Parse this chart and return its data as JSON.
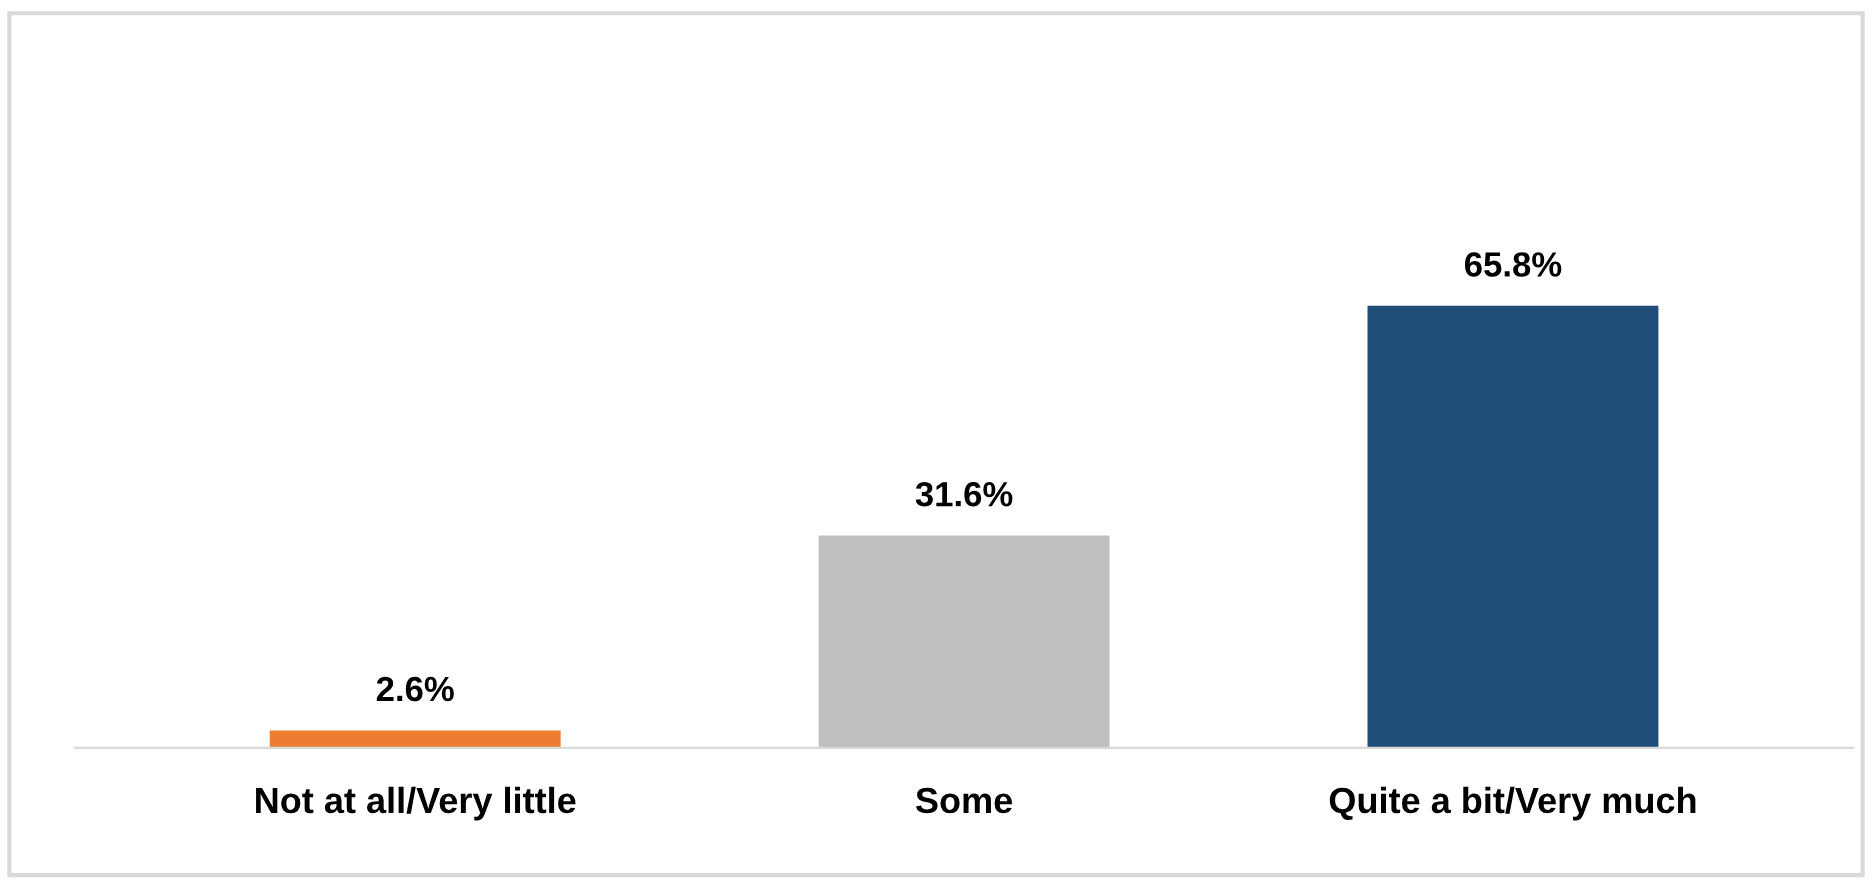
{
  "chart_data": {
    "type": "bar",
    "categories": [
      "Not at all/Very little",
      "Some",
      "Quite a bit/Very much"
    ],
    "values": [
      2.6,
      31.6,
      65.8
    ],
    "colors": [
      "#ed7d31",
      "#bfbfbf",
      "#1f4e79"
    ],
    "value_labels": [
      "2.6%",
      "31.6%",
      "65.8%"
    ],
    "grid": false,
    "legend": false
  }
}
